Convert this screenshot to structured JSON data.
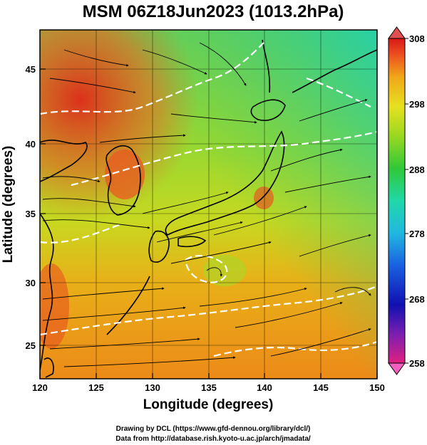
{
  "title": "MSM 06Z18Jun2023 (1013.2hPa)",
  "xlabel": "Longitude (degrees)",
  "ylabel": "Latitude  (degrees)",
  "credits": {
    "line1": "Drawing by DCL (https://www.gfd-dennou.org/library/dcl/)",
    "line2": "Data from http://database.rish.kyoto-u.ac.jp/arch/jmadata/"
  },
  "map": {
    "lon_range": [
      120,
      150
    ],
    "lat_range": [
      22.4,
      47.6
    ],
    "x_ticks": [
      "120",
      "125",
      "130",
      "135",
      "140",
      "145",
      "150"
    ],
    "y_ticks": [
      "25",
      "30",
      "35",
      "40",
      "45"
    ],
    "grid": true
  },
  "colorbar": {
    "min": 258,
    "max": 308,
    "labels": [
      "308",
      "298",
      "288",
      "278",
      "268",
      "258"
    ],
    "colors": [
      "#e0207a",
      "#7a1fb0",
      "#1010b0",
      "#1a60e0",
      "#20b8e0",
      "#20d8a8",
      "#30c838",
      "#9ad820",
      "#e6e020",
      "#f0a818",
      "#ec5020",
      "#d81818"
    ]
  },
  "colors": {
    "coast": "#000000",
    "streamline": "#000000",
    "contour": "#ffffff",
    "grid": "#000000"
  }
}
